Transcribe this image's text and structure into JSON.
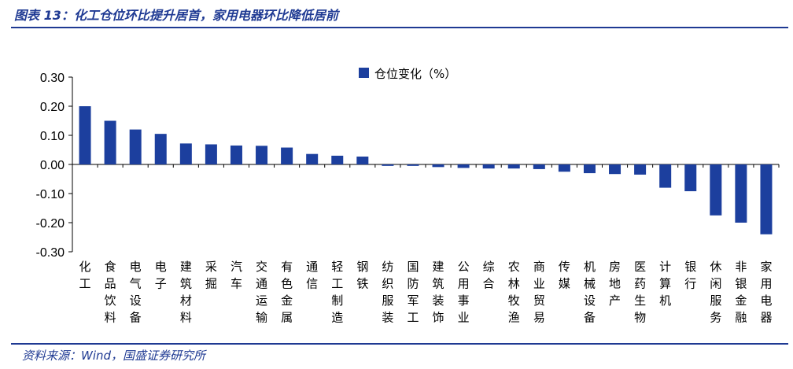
{
  "header": {
    "title": "图表 13：化工仓位环比提升居首，家用电器环比降低居前"
  },
  "footer": {
    "source": "资料来源：Wind，国盛证券研究所"
  },
  "colors": {
    "bar": "#1c3f9e",
    "accent": "#1f3a93"
  },
  "chart_data": {
    "type": "bar",
    "legend": {
      "label": "仓位变化（%）",
      "position": "top-center"
    },
    "ylim": [
      -0.3,
      0.3
    ],
    "yticks": [
      "0.30",
      "0.20",
      "0.10",
      "0.00",
      "-0.10",
      "-0.20",
      "-0.30"
    ],
    "grid": false,
    "categories": [
      "化工",
      "食品饮料",
      "电气设备",
      "电子",
      "建筑材料",
      "采掘",
      "汽车",
      "交通运输",
      "有色金属",
      "通信",
      "轻工制造",
      "钢铁",
      "纺织服装",
      "国防军工",
      "建筑装饰",
      "公用事业",
      "综合",
      "农林牧渔",
      "商业贸易",
      "传媒",
      "机械设备",
      "房地产",
      "医药生物",
      "计算机",
      "银行",
      "休闲服务",
      "非银金融",
      "家用电器"
    ],
    "series": [
      {
        "name": "仓位变化（%）",
        "values": [
          0.2,
          0.15,
          0.12,
          0.105,
          0.072,
          0.069,
          0.065,
          0.064,
          0.058,
          0.036,
          0.03,
          0.027,
          -0.005,
          -0.005,
          -0.009,
          -0.012,
          -0.014,
          -0.014,
          -0.016,
          -0.025,
          -0.03,
          -0.033,
          -0.035,
          -0.08,
          -0.092,
          -0.175,
          -0.2,
          -0.24
        ]
      }
    ]
  }
}
